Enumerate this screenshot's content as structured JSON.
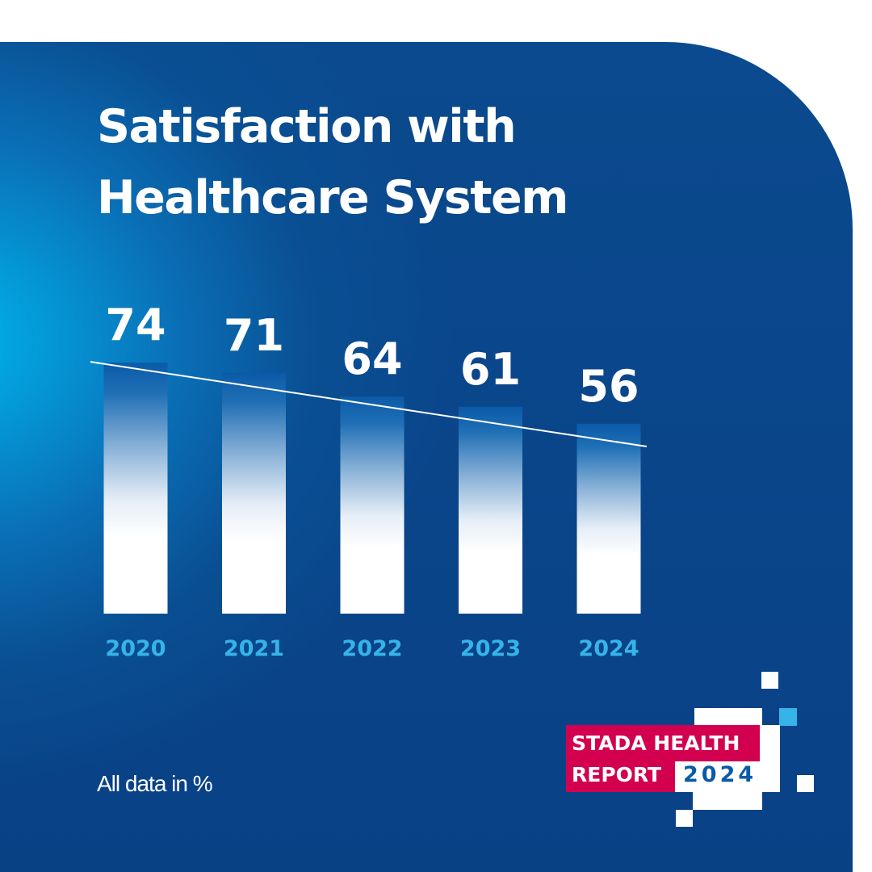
{
  "chart_data": {
    "type": "bar",
    "title": "Satisfaction with Healthcare System",
    "title_lines": [
      "Satisfaction with",
      "Healthcare System"
    ],
    "categories": [
      "2020",
      "2021",
      "2022",
      "2023",
      "2024"
    ],
    "values": [
      74,
      71,
      64,
      61,
      56
    ],
    "trendline": true,
    "grid": false,
    "xlabel": "",
    "ylabel": "",
    "note": "All data in %",
    "colors": {
      "bar_top": "#0a5aa8",
      "bar_bottom": "#ffffff",
      "value_label": "#ffffff",
      "category_label": "#36b4ea",
      "trendline": "#ffffff"
    }
  },
  "logo": {
    "line1": "STADA HEALTH",
    "line2": "REPORT",
    "year": "2024",
    "colors": {
      "brand": "#d2004f",
      "year": "#0a5aa8",
      "accent": "#36b4ea"
    }
  }
}
